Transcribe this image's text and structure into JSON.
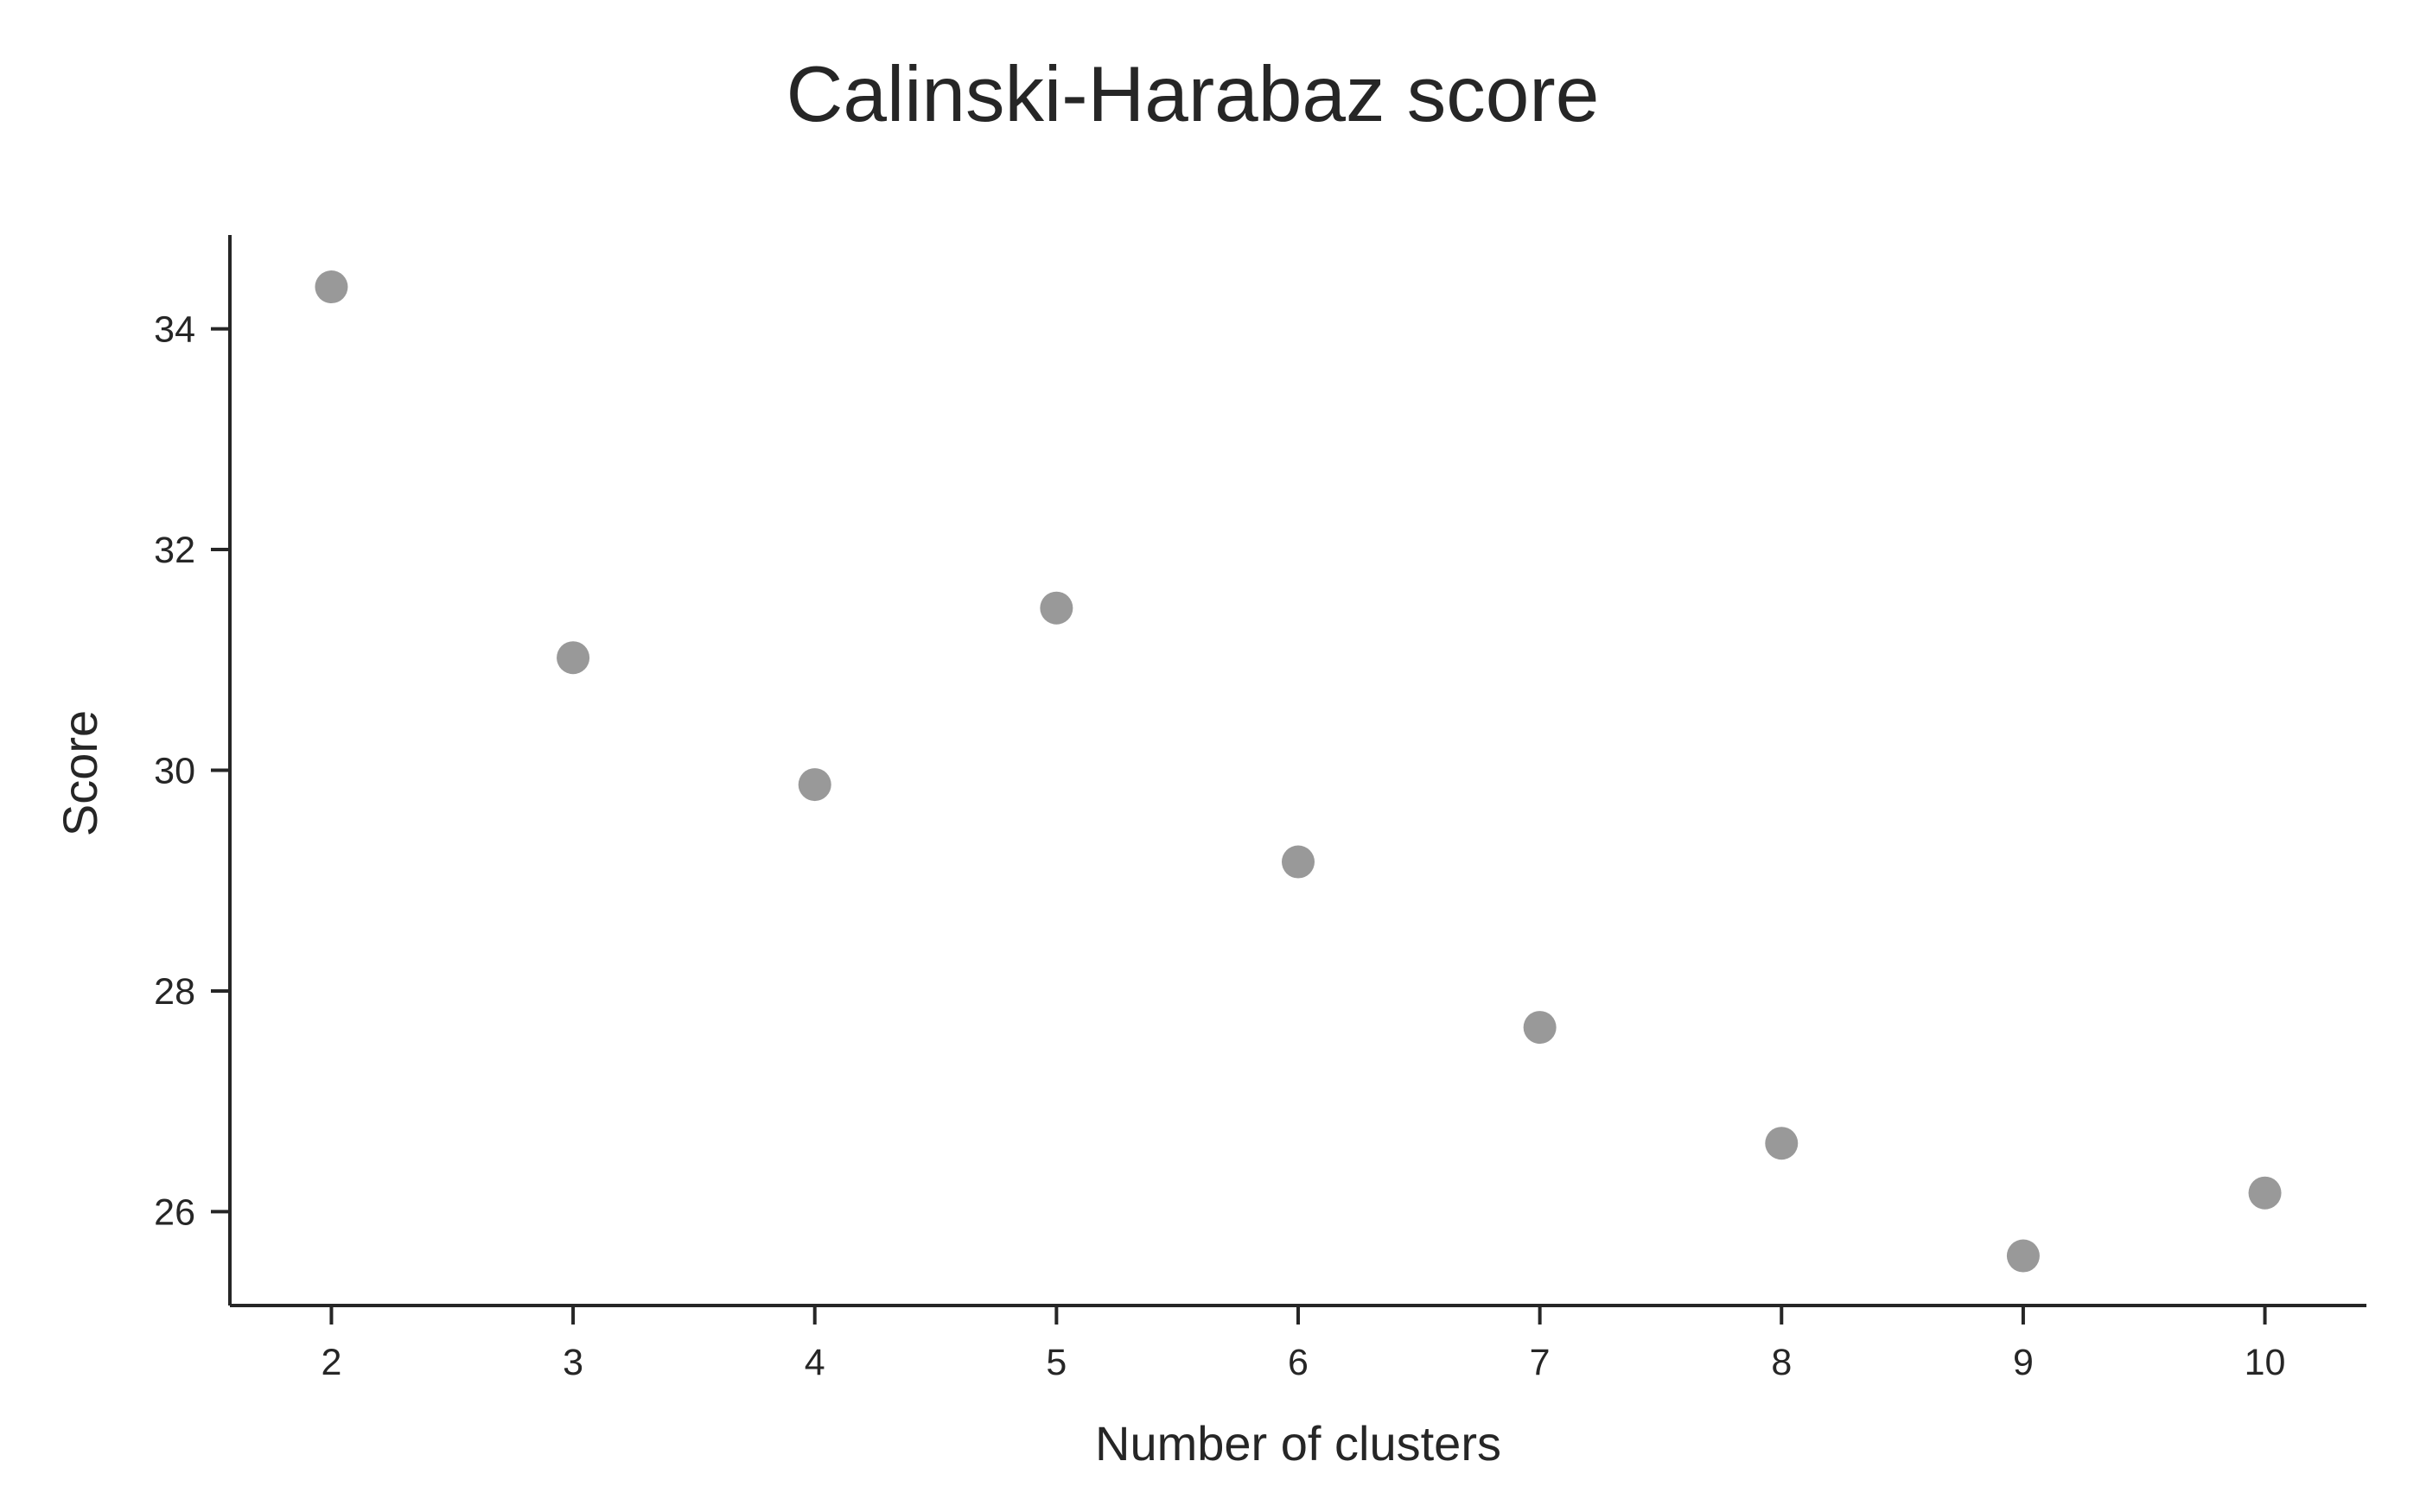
{
  "chart_data": {
    "type": "scatter",
    "title": "Calinski-Harabaz score",
    "xlabel": "Number of clusters",
    "ylabel": "Score",
    "x": [
      2,
      3,
      4,
      5,
      6,
      7,
      8,
      9,
      10
    ],
    "y": [
      34.38,
      31.02,
      29.87,
      31.47,
      29.17,
      27.67,
      26.62,
      25.6,
      26.17
    ],
    "xticks": [
      2,
      3,
      4,
      5,
      6,
      7,
      8,
      9,
      10
    ],
    "yticks": [
      26,
      28,
      30,
      32,
      34
    ],
    "xlim": [
      1.58,
      10.42
    ],
    "ylim": [
      25.15,
      34.85
    ],
    "grid": false,
    "legend": "none",
    "marker_color": "#999999",
    "axis_color": "#262626"
  }
}
